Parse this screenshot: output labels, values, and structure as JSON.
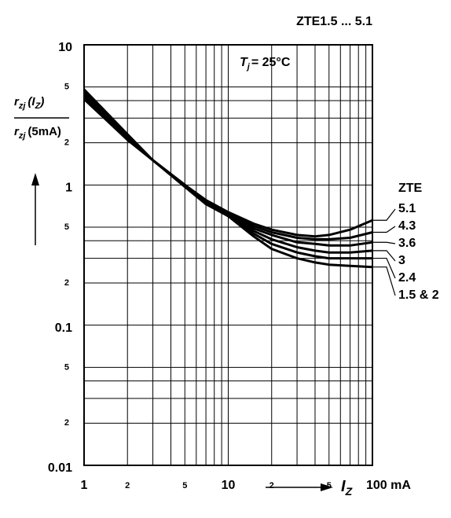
{
  "chart_data": {
    "type": "line",
    "title": "ZTE1.5 ... 5.1",
    "log_x": true,
    "log_y": true,
    "xlim": [
      1,
      100
    ],
    "ylim": [
      0.01,
      10
    ],
    "xticks": [
      1,
      {
        "value": 2,
        "label": "2"
      },
      {
        "value": 5,
        "label": "5"
      },
      10,
      {
        "value": 20,
        "label": "2"
      },
      {
        "value": 50,
        "label": "5"
      },
      {
        "value": 100,
        "label": "100 mA"
      }
    ],
    "yticks": [
      {
        "value": 0.01,
        "label": "0.01"
      },
      {
        "value": 0.02,
        "label": "2"
      },
      {
        "value": 0.05,
        "label": "5"
      },
      0.1,
      {
        "value": 0.2,
        "label": "2"
      },
      {
        "value": 0.5,
        "label": "5"
      },
      1,
      {
        "value": 2,
        "label": "2"
      },
      {
        "value": 5,
        "label": "5"
      },
      10
    ],
    "x_grid": [
      3,
      4,
      6,
      7,
      8,
      9,
      30,
      40,
      60,
      70,
      80,
      90
    ],
    "y_grid": [
      0.03,
      0.04,
      0.3,
      0.4,
      3,
      4
    ],
    "xlabel": {
      "symbol": "I",
      "sub": "Z"
    },
    "ylabel": {
      "numerator": {
        "symbol": "r",
        "sub": "zj",
        "arg": "(I",
        "arg_sub": "Z",
        "close": ")"
      },
      "denominator": {
        "symbol": "r",
        "sub": "zj",
        "arg": "(5mA)"
      }
    },
    "annotation": {
      "symbol": "T",
      "sub": "j",
      "text": "= 25°C"
    },
    "legend_title": "ZTE",
    "x": [
      1,
      2,
      3,
      5,
      7,
      10,
      15,
      20,
      30,
      40,
      50,
      70,
      100
    ],
    "series": [
      {
        "name": "5.1",
        "color": "#000000",
        "values": [
          4.1,
          2.1,
          1.5,
          1.0,
          0.78,
          0.64,
          0.53,
          0.48,
          0.44,
          0.43,
          0.44,
          0.48,
          0.56
        ]
      },
      {
        "name": "4.3",
        "color": "#000000",
        "values": [
          4.2,
          2.15,
          1.5,
          1.0,
          0.77,
          0.63,
          0.51,
          0.46,
          0.42,
          0.41,
          0.41,
          0.42,
          0.46
        ]
      },
      {
        "name": "3.6",
        "color": "#000000",
        "values": [
          4.3,
          2.2,
          1.5,
          1.0,
          0.76,
          0.62,
          0.49,
          0.44,
          0.39,
          0.38,
          0.37,
          0.37,
          0.39
        ]
      },
      {
        "name": "3",
        "color": "#000000",
        "values": [
          4.4,
          2.2,
          1.5,
          1.0,
          0.75,
          0.61,
          0.47,
          0.41,
          0.36,
          0.34,
          0.33,
          0.33,
          0.34
        ]
      },
      {
        "name": "2.4",
        "color": "#000000",
        "values": [
          4.6,
          2.25,
          1.5,
          0.98,
          0.74,
          0.6,
          0.45,
          0.38,
          0.33,
          0.31,
          0.3,
          0.3,
          0.3
        ]
      },
      {
        "name": "1.5 & 2",
        "color": "#000000",
        "values": [
          4.8,
          2.3,
          1.5,
          0.97,
          0.73,
          0.6,
          0.43,
          0.35,
          0.3,
          0.28,
          0.27,
          0.265,
          0.26
        ]
      }
    ]
  }
}
